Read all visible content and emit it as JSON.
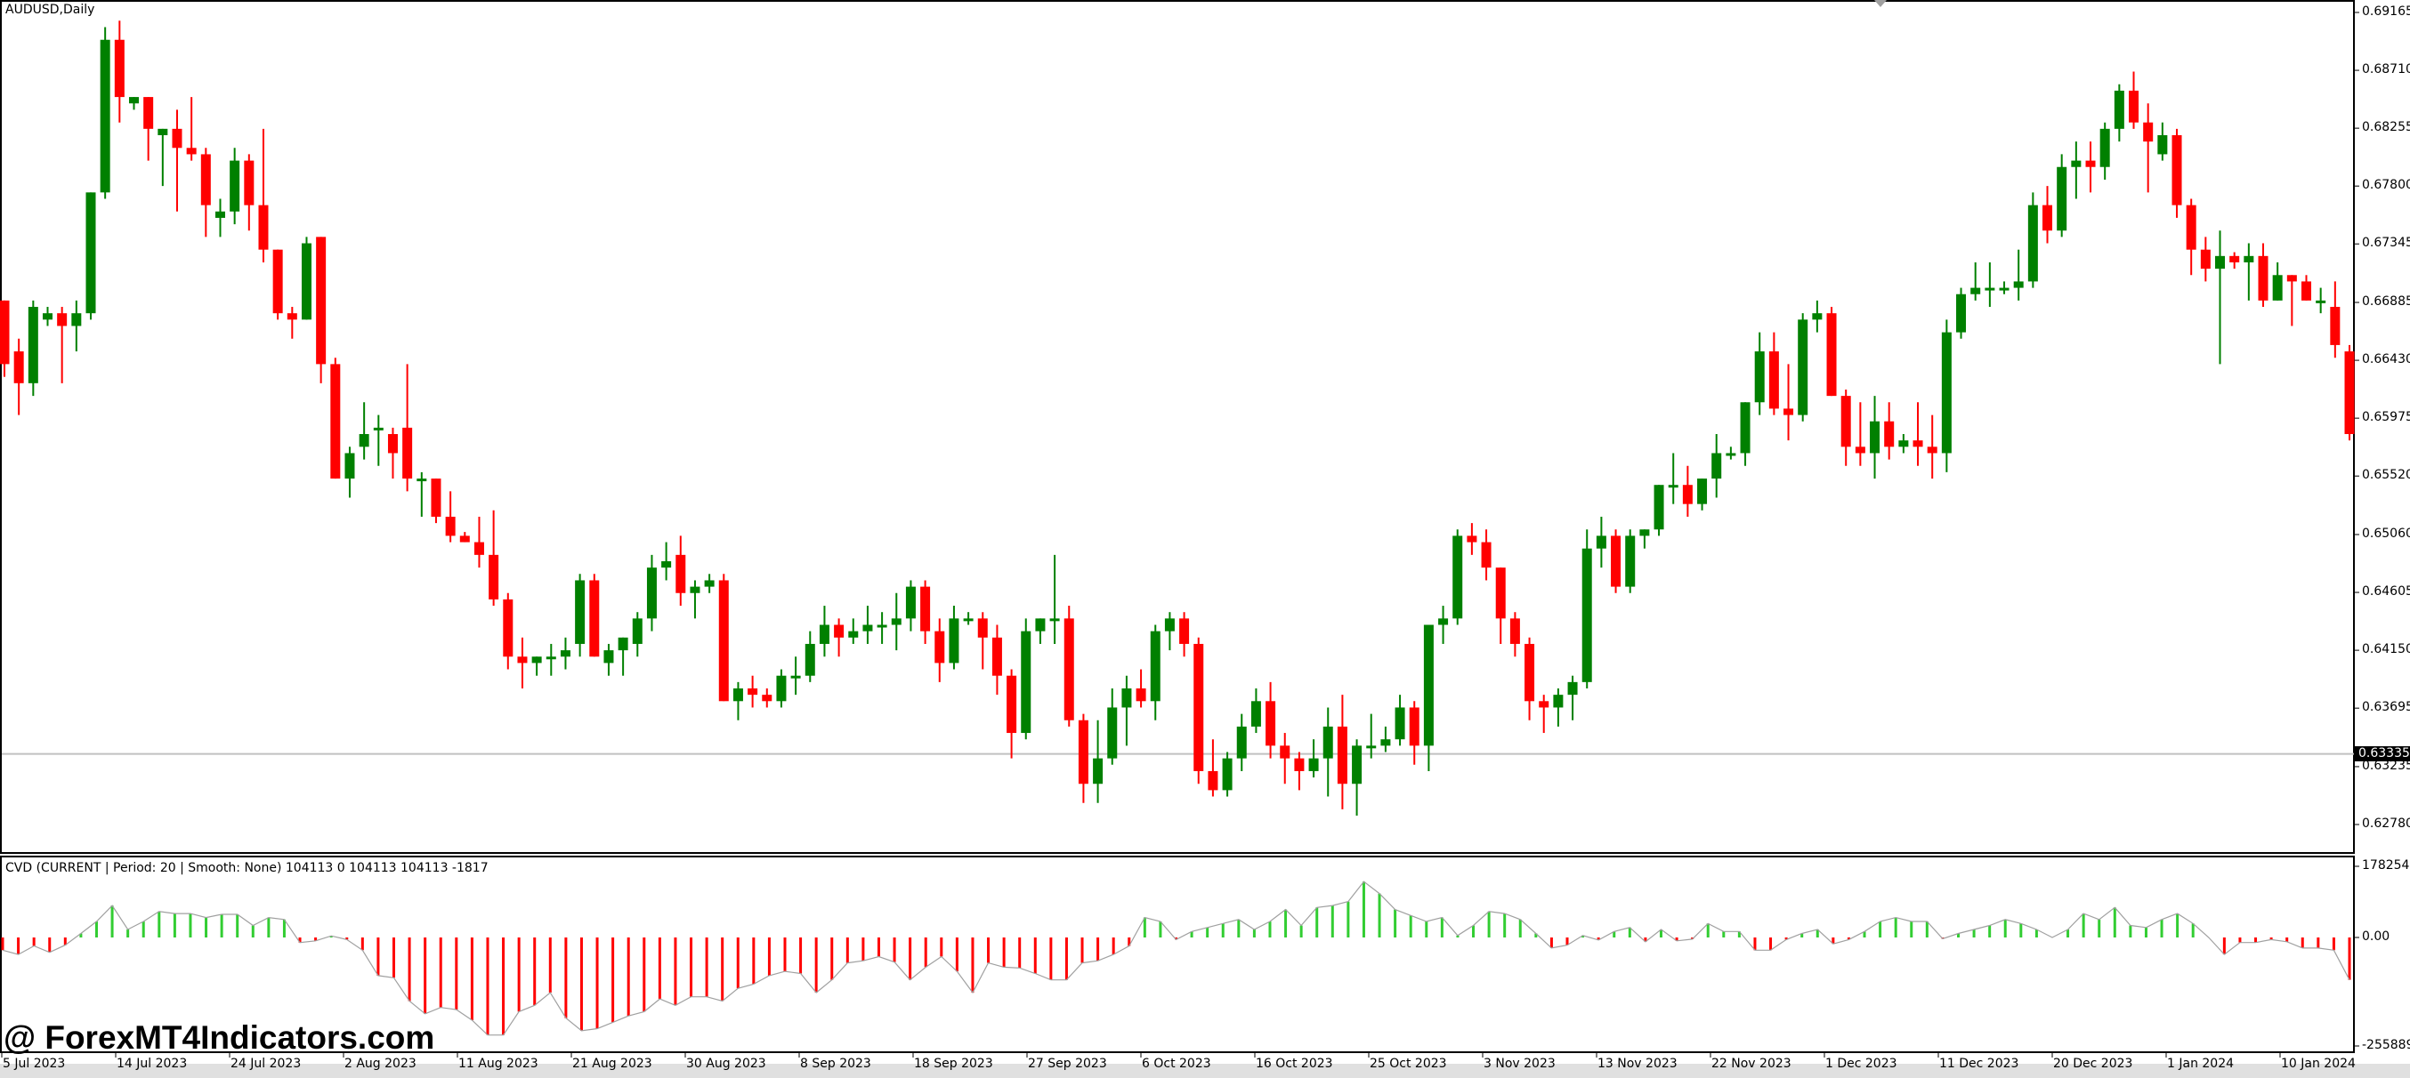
{
  "chart": {
    "symbol_title": "AUDUSD,Daily",
    "current_price_label": "0.63335",
    "current_price": 0.63335
  },
  "indicator": {
    "title": "CVD (CURRENT | Period: 20 | Smooth: None) 104113 0 104113 104113 -1817",
    "axis_labels": [
      "178254",
      "0.00",
      "-255889"
    ]
  },
  "watermark": "@ ForexMT4Indicators.com",
  "colors": {
    "bull": "#008000",
    "bear": "#ff0000",
    "hist_pos": "#32cd32",
    "hist_neg": "#ff0000",
    "cvd_line": "#a0a0a0",
    "price_line": "#c0c0c0"
  },
  "chart_data": [
    {
      "type": "candlestick",
      "title": "AUDUSD,Daily",
      "ylim": [
        0.6255,
        0.6925
      ],
      "y_ticks": [
        "0.69165",
        "0.68710",
        "0.68255",
        "0.67800",
        "0.67345",
        "0.66885",
        "0.66430",
        "0.65975",
        "0.65520",
        "0.65060",
        "0.64605",
        "0.64150",
        "0.63695",
        "0.63235",
        "0.62780"
      ],
      "x_ticks": [
        "5 Jul 2023",
        "14 Jul 2023",
        "24 Jul 2023",
        "2 Aug 2023",
        "11 Aug 2023",
        "21 Aug 2023",
        "30 Aug 2023",
        "8 Sep 2023",
        "18 Sep 2023",
        "27 Sep 2023",
        "6 Oct 2023",
        "16 Oct 2023",
        "25 Oct 2023",
        "3 Nov 2023",
        "13 Nov 2023",
        "22 Nov 2023",
        "1 Dec 2023",
        "11 Dec 2023",
        "20 Dec 2023",
        "1 Jan 2024",
        "10 Jan 2024"
      ],
      "ohlc": [
        [
          0.669,
          0.669,
          0.663,
          0.664
        ],
        [
          0.665,
          0.666,
          0.66,
          0.6625
        ],
        [
          0.6625,
          0.669,
          0.6615,
          0.6685
        ],
        [
          0.6675,
          0.6685,
          0.667,
          0.668
        ],
        [
          0.668,
          0.6685,
          0.6625,
          0.667
        ],
        [
          0.667,
          0.669,
          0.665,
          0.668
        ],
        [
          0.668,
          0.6775,
          0.6675,
          0.6775
        ],
        [
          0.6775,
          0.6905,
          0.677,
          0.6895
        ],
        [
          0.6895,
          0.691,
          0.683,
          0.685
        ],
        [
          0.6845,
          0.685,
          0.684,
          0.685
        ],
        [
          0.685,
          0.685,
          0.68,
          0.6825
        ],
        [
          0.682,
          0.6825,
          0.678,
          0.6825
        ],
        [
          0.6825,
          0.684,
          0.676,
          0.681
        ],
        [
          0.681,
          0.685,
          0.68,
          0.6805
        ],
        [
          0.6805,
          0.681,
          0.674,
          0.6765
        ],
        [
          0.6755,
          0.677,
          0.674,
          0.676
        ],
        [
          0.676,
          0.681,
          0.675,
          0.68
        ],
        [
          0.68,
          0.6805,
          0.6745,
          0.6765
        ],
        [
          0.6765,
          0.6825,
          0.672,
          0.673
        ],
        [
          0.673,
          0.673,
          0.6675,
          0.668
        ],
        [
          0.668,
          0.6685,
          0.666,
          0.6675
        ],
        [
          0.6675,
          0.674,
          0.6675,
          0.6735
        ],
        [
          0.674,
          0.674,
          0.6625,
          0.664
        ],
        [
          0.664,
          0.6645,
          0.6575,
          0.655
        ],
        [
          0.655,
          0.6575,
          0.6535,
          0.657
        ],
        [
          0.6575,
          0.661,
          0.6565,
          0.6585
        ],
        [
          0.659,
          0.66,
          0.656,
          0.659
        ],
        [
          0.6585,
          0.659,
          0.655,
          0.657
        ],
        [
          0.659,
          0.664,
          0.654,
          0.655
        ],
        [
          0.655,
          0.6555,
          0.652,
          0.655
        ],
        [
          0.655,
          0.655,
          0.6515,
          0.652
        ],
        [
          0.652,
          0.654,
          0.65,
          0.6505
        ],
        [
          0.6505,
          0.6508,
          0.65,
          0.65
        ],
        [
          0.65,
          0.652,
          0.648,
          0.649
        ],
        [
          0.649,
          0.6525,
          0.645,
          0.6455
        ],
        [
          0.6455,
          0.646,
          0.64,
          0.641
        ],
        [
          0.641,
          0.6425,
          0.6385,
          0.6405
        ],
        [
          0.6405,
          0.641,
          0.6395,
          0.641
        ],
        [
          0.641,
          0.642,
          0.6395,
          0.641
        ],
        [
          0.641,
          0.6425,
          0.64,
          0.6415
        ],
        [
          0.642,
          0.6475,
          0.641,
          0.647
        ],
        [
          0.647,
          0.6475,
          0.6415,
          0.641
        ],
        [
          0.6405,
          0.642,
          0.6395,
          0.6415
        ],
        [
          0.6415,
          0.642,
          0.6395,
          0.6425
        ],
        [
          0.642,
          0.6445,
          0.641,
          0.644
        ],
        [
          0.644,
          0.649,
          0.643,
          0.648
        ],
        [
          0.648,
          0.65,
          0.647,
          0.6485
        ],
        [
          0.649,
          0.6505,
          0.645,
          0.646
        ],
        [
          0.646,
          0.647,
          0.644,
          0.6465
        ],
        [
          0.6465,
          0.6475,
          0.646,
          0.647
        ],
        [
          0.647,
          0.6475,
          0.644,
          0.6375
        ],
        [
          0.6375,
          0.639,
          0.636,
          0.6385
        ],
        [
          0.6385,
          0.6395,
          0.637,
          0.638
        ],
        [
          0.638,
          0.6385,
          0.637,
          0.6375
        ],
        [
          0.6375,
          0.64,
          0.637,
          0.6395
        ],
        [
          0.6395,
          0.641,
          0.638,
          0.6395
        ],
        [
          0.6395,
          0.643,
          0.639,
          0.642
        ],
        [
          0.642,
          0.645,
          0.641,
          0.6435
        ],
        [
          0.6435,
          0.644,
          0.641,
          0.6425
        ],
        [
          0.6425,
          0.644,
          0.642,
          0.643
        ],
        [
          0.643,
          0.645,
          0.642,
          0.6435
        ],
        [
          0.6435,
          0.6445,
          0.642,
          0.6435
        ],
        [
          0.6435,
          0.646,
          0.6415,
          0.644
        ],
        [
          0.644,
          0.647,
          0.643,
          0.6465
        ],
        [
          0.6465,
          0.647,
          0.642,
          0.643
        ],
        [
          0.643,
          0.644,
          0.639,
          0.6405
        ],
        [
          0.6405,
          0.645,
          0.64,
          0.644
        ],
        [
          0.644,
          0.6445,
          0.6435,
          0.644
        ],
        [
          0.644,
          0.6445,
          0.64,
          0.6425
        ],
        [
          0.6425,
          0.6435,
          0.638,
          0.6395
        ],
        [
          0.6395,
          0.64,
          0.633,
          0.635
        ],
        [
          0.635,
          0.644,
          0.6345,
          0.643
        ],
        [
          0.643,
          0.644,
          0.642,
          0.644
        ],
        [
          0.644,
          0.649,
          0.642,
          0.644
        ],
        [
          0.644,
          0.645,
          0.6355,
          0.636
        ],
        [
          0.636,
          0.6365,
          0.6295,
          0.631
        ],
        [
          0.631,
          0.636,
          0.6295,
          0.633
        ],
        [
          0.633,
          0.6385,
          0.6325,
          0.637
        ],
        [
          0.637,
          0.6395,
          0.634,
          0.6385
        ],
        [
          0.6385,
          0.64,
          0.637,
          0.6375
        ],
        [
          0.6375,
          0.6435,
          0.636,
          0.643
        ],
        [
          0.643,
          0.6445,
          0.6415,
          0.644
        ],
        [
          0.644,
          0.6445,
          0.641,
          0.642
        ],
        [
          0.642,
          0.6425,
          0.631,
          0.632
        ],
        [
          0.632,
          0.6345,
          0.63,
          0.6305
        ],
        [
          0.6305,
          0.6335,
          0.63,
          0.633
        ],
        [
          0.633,
          0.6365,
          0.632,
          0.6355
        ],
        [
          0.6355,
          0.6385,
          0.635,
          0.6375
        ],
        [
          0.6375,
          0.639,
          0.633,
          0.634
        ],
        [
          0.634,
          0.635,
          0.631,
          0.633
        ],
        [
          0.633,
          0.6335,
          0.6305,
          0.632
        ],
        [
          0.632,
          0.6345,
          0.6315,
          0.633
        ],
        [
          0.633,
          0.637,
          0.63,
          0.6355
        ],
        [
          0.6355,
          0.638,
          0.629,
          0.631
        ],
        [
          0.631,
          0.6345,
          0.6285,
          0.634
        ],
        [
          0.634,
          0.6365,
          0.633,
          0.634
        ],
        [
          0.634,
          0.6355,
          0.6335,
          0.6345
        ],
        [
          0.6345,
          0.638,
          0.634,
          0.637
        ],
        [
          0.637,
          0.6375,
          0.6325,
          0.634
        ],
        [
          0.634,
          0.6385,
          0.632,
          0.6435
        ],
        [
          0.6435,
          0.645,
          0.642,
          0.644
        ],
        [
          0.644,
          0.651,
          0.6435,
          0.6505
        ],
        [
          0.6505,
          0.6515,
          0.649,
          0.65
        ],
        [
          0.65,
          0.651,
          0.647,
          0.648
        ],
        [
          0.648,
          0.648,
          0.642,
          0.644
        ],
        [
          0.644,
          0.6445,
          0.641,
          0.642
        ],
        [
          0.642,
          0.6425,
          0.636,
          0.6375
        ],
        [
          0.6375,
          0.638,
          0.635,
          0.637
        ],
        [
          0.637,
          0.6385,
          0.6355,
          0.638
        ],
        [
          0.638,
          0.6395,
          0.636,
          0.639
        ],
        [
          0.639,
          0.651,
          0.6385,
          0.6495
        ],
        [
          0.6495,
          0.652,
          0.648,
          0.6505
        ],
        [
          0.6505,
          0.651,
          0.646,
          0.6465
        ],
        [
          0.6465,
          0.651,
          0.646,
          0.6505
        ],
        [
          0.6505,
          0.651,
          0.6495,
          0.651
        ],
        [
          0.651,
          0.6545,
          0.6505,
          0.6545
        ],
        [
          0.6545,
          0.657,
          0.653,
          0.6545
        ],
        [
          0.6545,
          0.656,
          0.652,
          0.653
        ],
        [
          0.653,
          0.655,
          0.6525,
          0.655
        ],
        [
          0.655,
          0.6585,
          0.6535,
          0.657
        ],
        [
          0.657,
          0.6575,
          0.6565,
          0.657
        ],
        [
          0.657,
          0.661,
          0.656,
          0.661
        ],
        [
          0.661,
          0.6665,
          0.66,
          0.665
        ],
        [
          0.665,
          0.6665,
          0.66,
          0.6605
        ],
        [
          0.6605,
          0.664,
          0.658,
          0.66
        ],
        [
          0.66,
          0.668,
          0.6595,
          0.6675
        ],
        [
          0.6675,
          0.669,
          0.6665,
          0.668
        ],
        [
          0.668,
          0.6685,
          0.662,
          0.6615
        ],
        [
          0.6615,
          0.662,
          0.656,
          0.6575
        ],
        [
          0.6575,
          0.661,
          0.656,
          0.657
        ],
        [
          0.657,
          0.6615,
          0.655,
          0.6595
        ],
        [
          0.6595,
          0.661,
          0.6565,
          0.6575
        ],
        [
          0.6575,
          0.6585,
          0.657,
          0.658
        ],
        [
          0.658,
          0.661,
          0.656,
          0.6575
        ],
        [
          0.6575,
          0.66,
          0.655,
          0.657
        ],
        [
          0.657,
          0.6675,
          0.6555,
          0.6665
        ],
        [
          0.6665,
          0.67,
          0.666,
          0.6695
        ],
        [
          0.6695,
          0.672,
          0.669,
          0.67
        ],
        [
          0.67,
          0.672,
          0.6685,
          0.67
        ],
        [
          0.67,
          0.6705,
          0.6695,
          0.67
        ],
        [
          0.67,
          0.673,
          0.669,
          0.6705
        ],
        [
          0.6705,
          0.6775,
          0.67,
          0.6765
        ],
        [
          0.6765,
          0.678,
          0.6735,
          0.6745
        ],
        [
          0.6745,
          0.6805,
          0.674,
          0.6795
        ],
        [
          0.6795,
          0.6815,
          0.677,
          0.68
        ],
        [
          0.68,
          0.6815,
          0.6775,
          0.6795
        ],
        [
          0.6795,
          0.683,
          0.6785,
          0.6825
        ],
        [
          0.6825,
          0.686,
          0.6815,
          0.6855
        ],
        [
          0.6855,
          0.687,
          0.6825,
          0.683
        ],
        [
          0.683,
          0.6845,
          0.6775,
          0.6815
        ],
        [
          0.6805,
          0.683,
          0.68,
          0.682
        ],
        [
          0.682,
          0.6825,
          0.6755,
          0.6765
        ],
        [
          0.6765,
          0.677,
          0.671,
          0.673
        ],
        [
          0.673,
          0.674,
          0.6705,
          0.6715
        ],
        [
          0.6715,
          0.6745,
          0.664,
          0.6725
        ],
        [
          0.6725,
          0.6728,
          0.6715,
          0.672
        ],
        [
          0.672,
          0.6735,
          0.669,
          0.6725
        ],
        [
          0.6725,
          0.6735,
          0.6685,
          0.669
        ],
        [
          0.669,
          0.672,
          0.669,
          0.671
        ],
        [
          0.671,
          0.671,
          0.667,
          0.6705
        ],
        [
          0.6705,
          0.671,
          0.669,
          0.669
        ],
        [
          0.669,
          0.67,
          0.668,
          0.669
        ],
        [
          0.6685,
          0.6705,
          0.6645,
          0.6655
        ],
        [
          0.665,
          0.6655,
          0.658,
          0.6585
        ]
      ]
    },
    {
      "type": "bar",
      "title": "CVD (CURRENT | Period: 20 | Smooth: None) 104113 0 104113 104113 -1817",
      "ylim": [
        -255889,
        178254
      ],
      "y_ticks": [
        "178254",
        "0.00",
        "-255889"
      ],
      "values": [
        -30000,
        -40000,
        -20000,
        -35000,
        -18000,
        10000,
        40000,
        80000,
        20000,
        40000,
        65000,
        60000,
        60000,
        50000,
        58000,
        58000,
        30000,
        50000,
        45000,
        -12000,
        -8000,
        4000,
        -5000,
        -30000,
        -90000,
        -95000,
        -150000,
        -180000,
        -165000,
        -170000,
        -195000,
        -230000,
        -230000,
        -175000,
        -160000,
        -130000,
        -190000,
        -220000,
        -215000,
        -200000,
        -185000,
        -175000,
        -145000,
        -160000,
        -140000,
        -140000,
        -150000,
        -120000,
        -110000,
        -90000,
        -80000,
        -85000,
        -130000,
        -100000,
        -60000,
        -55000,
        -45000,
        -58000,
        -100000,
        -70000,
        -45000,
        -80000,
        -130000,
        -60000,
        -70000,
        -72000,
        -85000,
        -100000,
        -100000,
        -60000,
        -55000,
        -40000,
        -20000,
        50000,
        40000,
        -5000,
        15000,
        25000,
        35000,
        45000,
        20000,
        40000,
        70000,
        30000,
        75000,
        80000,
        90000,
        140000,
        110000,
        70000,
        55000,
        40000,
        50000,
        5000,
        30000,
        65000,
        60000,
        45000,
        10000,
        -25000,
        -18000,
        5000,
        -6000,
        15000,
        25000,
        -10000,
        20000,
        -8000,
        -4000,
        35000,
        15000,
        15000,
        -30000,
        -30000,
        -5000,
        10000,
        20000,
        -15000,
        -5000,
        15000,
        40000,
        50000,
        40000,
        40000,
        -3000,
        10000,
        20000,
        30000,
        45000,
        35000,
        20000,
        0,
        20000,
        60000,
        45000,
        75000,
        30000,
        25000,
        45000,
        60000,
        35000,
        0,
        -40000,
        -12000,
        -12000,
        -5000,
        -10000,
        -25000,
        -25000,
        -30000,
        -100000
      ],
      "line": "grey cumulative line connecting histogram tops"
    }
  ]
}
